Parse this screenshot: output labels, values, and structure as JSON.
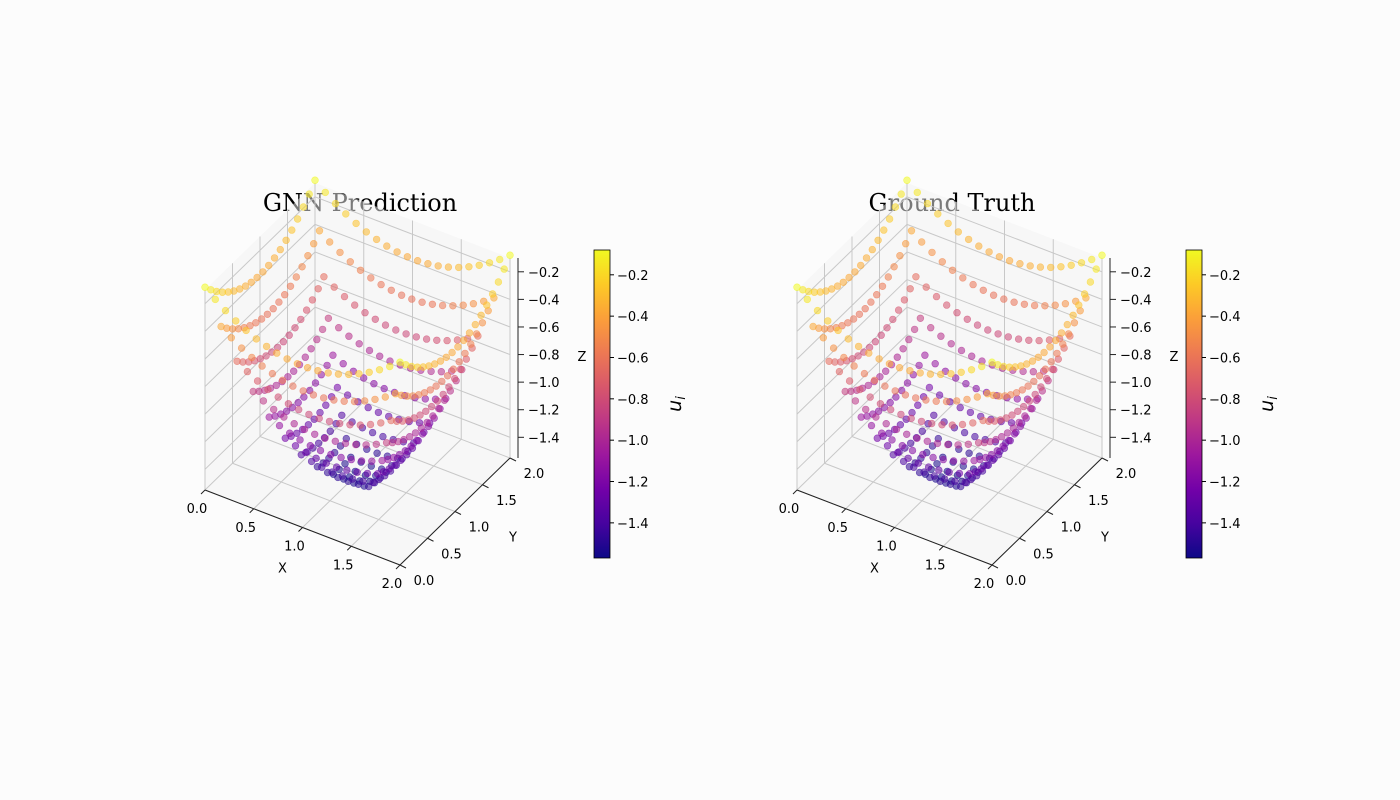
{
  "chart_data": [
    {
      "type": "scatter",
      "title": "GNN Prediction",
      "xlabel": "X",
      "ylabel": "Y",
      "zlabel": "Z",
      "xlim": [
        0.0,
        2.0
      ],
      "ylim": [
        0.0,
        2.0
      ],
      "zlim": [
        -1.55,
        -0.1
      ],
      "xticks": [
        "0.0",
        "0.5",
        "1.0",
        "1.5",
        "2.0"
      ],
      "yticks": [
        "0.0",
        "0.5",
        "1.0",
        "1.5",
        "2.0"
      ],
      "zticks": [
        "−1.4",
        "−1.2",
        "−1.0",
        "−0.8",
        "−0.6",
        "−0.4",
        "−0.2"
      ],
      "colorbar": {
        "label": "u_i",
        "label_base": "u",
        "label_sub": "i",
        "range": [
          -1.57,
          -0.08
        ],
        "ticks": [
          "−1.4",
          "−1.2",
          "−1.0",
          "−0.8",
          "−0.6",
          "−0.4",
          "−0.2"
        ],
        "colormap": "plasma"
      },
      "surface": {
        "grid_x": [
          0.0,
          2.0
        ],
        "grid_y": [
          0.0,
          2.0
        ],
        "n": 20,
        "z_center": -1.57,
        "z_corner": -0.08,
        "function": "bowl"
      }
    },
    {
      "type": "scatter",
      "title": "Ground Truth",
      "xlabel": "X",
      "ylabel": "Y",
      "zlabel": "Z",
      "xlim": [
        0.0,
        2.0
      ],
      "ylim": [
        0.0,
        2.0
      ],
      "zlim": [
        -1.55,
        -0.1
      ],
      "xticks": [
        "0.0",
        "0.5",
        "1.0",
        "1.5",
        "2.0"
      ],
      "yticks": [
        "0.0",
        "0.5",
        "1.0",
        "1.5",
        "2.0"
      ],
      "zticks": [
        "−1.4",
        "−1.2",
        "−1.0",
        "−0.8",
        "−0.6",
        "−0.4",
        "−0.2"
      ],
      "colorbar": {
        "label": "u_i",
        "label_base": "u",
        "label_sub": "i",
        "range": [
          -1.57,
          -0.08
        ],
        "ticks": [
          "−1.4",
          "−1.2",
          "−1.0",
          "−0.8",
          "−0.6",
          "−0.4",
          "−0.2"
        ],
        "colormap": "plasma"
      },
      "surface": {
        "grid_x": [
          0.0,
          2.0
        ],
        "grid_y": [
          0.0,
          2.0
        ],
        "n": 20,
        "z_center": -1.57,
        "z_corner": -0.08,
        "function": "bowl"
      }
    }
  ],
  "colors": {
    "background": "#fcfcfc",
    "plasma": [
      "#0d0887",
      "#46039f",
      "#7201a8",
      "#9c179e",
      "#bd3786",
      "#d8576b",
      "#ed7953",
      "#fb9f3a",
      "#fdca26",
      "#f0f921"
    ]
  }
}
